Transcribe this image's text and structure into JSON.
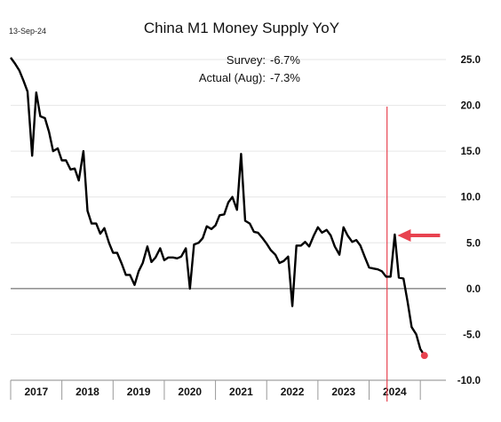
{
  "date_label": "13-Sep-24",
  "chart_data": {
    "type": "line",
    "title": "China M1 Money Supply YoY",
    "annotations": [
      {
        "label": "Survey:",
        "value": "-6.7%"
      },
      {
        "label": "Actual (Aug):",
        "value": "-7.3%"
      }
    ],
    "ylim": [
      -10,
      25
    ],
    "yticks": [
      "25.0",
      "20.0",
      "15.0",
      "10.0",
      "5.0",
      "0.0",
      "-5.0",
      "-10.0"
    ],
    "xlim": [
      2016.5,
      2025.0
    ],
    "xticks": [
      "2017",
      "2018",
      "2019",
      "2020",
      "2021",
      "2022",
      "2023",
      "2024"
    ],
    "grid": true,
    "vline_x": 2023.85,
    "line_color": "#000000",
    "accent_color": "#e8424f",
    "arrow_at": [
      2023.88,
      5.8
    ],
    "series": [
      {
        "x": [
          2016.5,
          2016.58,
          2016.67,
          2016.75,
          2016.83,
          2016.92,
          2017.0,
          2017.08,
          2017.17,
          2017.25,
          2017.33,
          2017.42,
          2017.5,
          2017.58,
          2017.67,
          2017.75,
          2017.83,
          2017.92,
          2018.0,
          2018.08,
          2018.17,
          2018.25,
          2018.33,
          2018.42,
          2018.5,
          2018.58,
          2018.67,
          2018.75,
          2018.83,
          2018.92,
          2019.0,
          2019.08,
          2019.17,
          2019.25,
          2019.33,
          2019.42,
          2019.5,
          2019.58,
          2019.67,
          2019.75,
          2019.83,
          2019.92,
          2020.0,
          2020.08,
          2020.17,
          2020.25,
          2020.33,
          2020.42,
          2020.5,
          2020.58,
          2020.67,
          2020.75,
          2020.83,
          2020.92,
          2021.0,
          2021.08,
          2021.17,
          2021.25,
          2021.33,
          2021.42,
          2021.5,
          2021.58,
          2021.67,
          2021.75,
          2021.83,
          2021.92,
          2022.0,
          2022.08,
          2022.17,
          2022.25,
          2022.33,
          2022.42,
          2022.5,
          2022.58,
          2022.67,
          2022.75,
          2022.83,
          2022.92,
          2023.0,
          2023.08,
          2023.17,
          2023.25,
          2023.33,
          2023.42,
          2023.5,
          2023.58,
          2023.67,
          2023.75,
          2023.83,
          2023.92,
          2024.0,
          2024.08,
          2024.17,
          2024.25,
          2024.33,
          2024.42,
          2024.5,
          2024.58
        ],
        "values": [
          25.2,
          24.6,
          23.8,
          22.7,
          21.5,
          14.5,
          21.4,
          18.8,
          18.6,
          17.1,
          15.0,
          15.3,
          14.0,
          14.0,
          13.0,
          13.1,
          11.8,
          15.0,
          8.5,
          7.1,
          7.1,
          6.0,
          6.6,
          5.0,
          3.9,
          3.9,
          2.7,
          1.5,
          1.5,
          0.4,
          1.9,
          2.8,
          4.6,
          2.9,
          3.4,
          4.4,
          3.1,
          3.4,
          3.4,
          3.3,
          3.5,
          4.4,
          0.0,
          4.8,
          5.0,
          5.5,
          6.8,
          6.5,
          6.9,
          8.0,
          8.1,
          9.4,
          10.0,
          8.6,
          14.7,
          7.4,
          7.1,
          6.2,
          6.1,
          5.5,
          4.9,
          4.2,
          3.7,
          2.8,
          3.0,
          3.5,
          -1.9,
          4.7,
          4.7,
          5.1,
          4.6,
          5.8,
          6.7,
          6.1,
          6.4,
          5.8,
          4.6,
          3.7,
          6.7,
          5.8,
          5.1,
          5.3,
          4.7,
          3.4,
          2.3,
          2.2,
          2.1,
          1.9,
          1.3,
          1.3,
          5.9,
          1.2,
          1.1,
          -1.4,
          -4.2,
          -5.0,
          -6.6,
          -7.3
        ]
      }
    ]
  }
}
